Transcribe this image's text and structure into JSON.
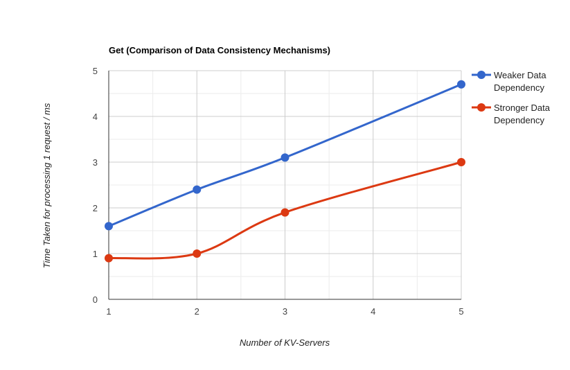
{
  "chart_data": {
    "type": "line",
    "title": "Get (Comparison of Data Consistency Mechanisms)",
    "xlabel": "Number of KV-Servers",
    "ylabel": "Time Taken for processing 1 request / ms",
    "x": [
      1,
      2,
      3,
      5
    ],
    "xticks": [
      "1",
      "2",
      "3",
      "4",
      "5"
    ],
    "yticks": [
      "0",
      "1",
      "2",
      "3",
      "4",
      "5"
    ],
    "xlim": [
      1,
      5
    ],
    "ylim": [
      0,
      5
    ],
    "grid": true,
    "legend_position": "right",
    "series": [
      {
        "name": "Weaker Data Dependency",
        "legend_lines": [
          "Weaker Data",
          "Dependency"
        ],
        "color": "#3366cc",
        "values": [
          1.6,
          2.4,
          3.1,
          4.7
        ]
      },
      {
        "name": "Stronger Data Dependency",
        "legend_lines": [
          "Stronger Data",
          "Dependency"
        ],
        "color": "#dc3912",
        "values": [
          0.9,
          1.0,
          1.9,
          3.0
        ]
      }
    ]
  }
}
